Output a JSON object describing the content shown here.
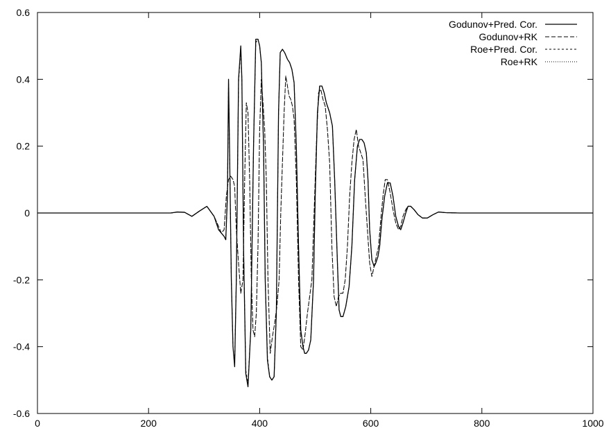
{
  "chart_data": {
    "type": "line",
    "title": "",
    "xlabel": "",
    "ylabel": "",
    "xlim": [
      0,
      1000
    ],
    "ylim": [
      -0.6,
      0.6
    ],
    "xticks": [
      0,
      200,
      400,
      600,
      800,
      1000
    ],
    "xtick_labels": [
      "0",
      "200",
      "400",
      "600",
      "800",
      "1000"
    ],
    "yticks": [
      -0.6,
      -0.4,
      -0.2,
      0,
      0.2,
      0.4,
      0.6
    ],
    "ytick_labels": [
      "-0.6",
      "-0.4",
      "-0.2",
      "0",
      "0.2",
      "0.4",
      "0.6"
    ],
    "grid": false,
    "legend_position": "top-right",
    "series": [
      {
        "name": "Godunov+Pred. Cor.",
        "line_style": "solid",
        "color": "#000000",
        "x": [
          0,
          240,
          252,
          265,
          278,
          291,
          305,
          318,
          326,
          331,
          336,
          339,
          342,
          344,
          346,
          349,
          352,
          355,
          358,
          362,
          366,
          368,
          371,
          375,
          379,
          384,
          389,
          393,
          397,
          400,
          403,
          407,
          410,
          414,
          418,
          422,
          426,
          430,
          434,
          437,
          441,
          445,
          450,
          454,
          458,
          462,
          466,
          470,
          474,
          478,
          481,
          484,
          488,
          492,
          497,
          500,
          504,
          508,
          512,
          516,
          520,
          526,
          531,
          535,
          540,
          543,
          546,
          550,
          555,
          561,
          566,
          571,
          576,
          580,
          584,
          588,
          592,
          595,
          598,
          602,
          606,
          609,
          613,
          616,
          620,
          625,
          630,
          635,
          640,
          645,
          650,
          654,
          658,
          663,
          667,
          672,
          678,
          685,
          693,
          702,
          712,
          722,
          735,
          760,
          800,
          900,
          1000
        ],
        "values": [
          0,
          0,
          0.003,
          0.002,
          -0.01,
          0.005,
          0.02,
          -0.01,
          -0.05,
          -0.06,
          -0.07,
          -0.08,
          0.05,
          0.4,
          0.17,
          -0.2,
          -0.4,
          -0.46,
          -0.2,
          0.4,
          0.5,
          0.4,
          -0.1,
          -0.48,
          -0.52,
          -0.35,
          0.2,
          0.52,
          0.52,
          0.5,
          0.45,
          0.2,
          -0.2,
          -0.44,
          -0.49,
          -0.5,
          -0.49,
          -0.3,
          0.3,
          0.48,
          0.49,
          0.48,
          0.46,
          0.45,
          0.43,
          0.39,
          0.2,
          -0.1,
          -0.35,
          -0.4,
          -0.42,
          -0.42,
          -0.41,
          -0.38,
          -0.2,
          0.05,
          0.3,
          0.38,
          0.38,
          0.36,
          0.33,
          0.3,
          0.26,
          0.1,
          -0.15,
          -0.29,
          -0.31,
          -0.31,
          -0.28,
          -0.22,
          -0.1,
          0.1,
          0.2,
          0.22,
          0.22,
          0.21,
          0.18,
          0.1,
          -0.05,
          -0.14,
          -0.16,
          -0.15,
          -0.13,
          -0.1,
          -0.02,
          0.05,
          0.09,
          0.09,
          0.05,
          -0.01,
          -0.04,
          -0.05,
          -0.03,
          0,
          0.02,
          0.02,
          0.01,
          -0.005,
          -0.015,
          -0.015,
          -0.005,
          0.003,
          0.001,
          0,
          0,
          0,
          0
        ]
      },
      {
        "name": "Godunov+RK",
        "line_style": "dashed",
        "color": "#000000",
        "x": [
          0,
          240,
          252,
          265,
          278,
          291,
          305,
          318,
          326,
          331,
          336,
          340,
          344,
          348,
          352,
          355,
          358,
          362,
          366,
          370,
          373,
          376,
          379,
          382,
          385,
          388,
          391,
          394,
          397,
          400,
          403,
          406,
          409,
          412,
          415,
          419,
          423,
          427,
          431,
          435,
          438,
          441,
          444,
          447,
          450,
          453,
          456,
          459,
          462,
          466,
          470,
          474,
          478,
          482,
          486,
          490,
          494,
          498,
          502,
          506,
          510,
          514,
          518,
          522,
          526,
          530,
          534,
          538,
          542,
          546,
          550,
          554,
          558,
          562,
          566,
          570,
          574,
          578,
          582,
          586,
          590,
          594,
          598,
          602,
          606,
          610,
          614,
          618,
          622,
          626,
          630,
          635,
          640,
          645,
          650,
          654,
          658,
          663,
          667,
          672,
          678,
          685,
          693,
          702,
          712,
          722,
          735,
          760,
          800,
          900,
          1000
        ],
        "values": [
          0,
          0,
          0.003,
          0.002,
          -0.01,
          0.005,
          0.02,
          -0.01,
          -0.04,
          -0.06,
          -0.05,
          0.05,
          0.1,
          0.11,
          0.1,
          0.08,
          -0.05,
          -0.15,
          -0.24,
          -0.2,
          0.1,
          0.33,
          0.3,
          0.1,
          -0.2,
          -0.35,
          -0.37,
          -0.3,
          -0.1,
          0.25,
          0.4,
          0.33,
          0.25,
          0.1,
          -0.2,
          -0.42,
          -0.37,
          -0.33,
          -0.28,
          -0.2,
          0,
          0.15,
          0.3,
          0.41,
          0.38,
          0.35,
          0.34,
          0.32,
          0.28,
          0.1,
          -0.2,
          -0.4,
          -0.41,
          -0.36,
          -0.3,
          -0.25,
          -0.2,
          0,
          0.2,
          0.36,
          0.37,
          0.34,
          0.32,
          0.25,
          0.15,
          -0.1,
          -0.25,
          -0.28,
          -0.25,
          -0.24,
          -0.24,
          -0.2,
          -0.1,
          0.05,
          0.15,
          0.22,
          0.25,
          0.2,
          0.18,
          0.16,
          0.05,
          -0.05,
          -0.15,
          -0.19,
          -0.16,
          -0.13,
          -0.1,
          -0.02,
          0.05,
          0.1,
          0.1,
          0.06,
          0.01,
          -0.03,
          -0.05,
          -0.04,
          -0.01,
          0.01,
          0.02,
          0.02,
          0.01,
          -0.005,
          -0.015,
          -0.015,
          -0.005,
          0.003,
          0.001,
          0,
          0,
          0,
          0
        ]
      },
      {
        "name": "Roe+Pred. Cor.",
        "line_style": "short-dashed",
        "color": "#000000",
        "x": [
          0,
          240,
          252,
          265,
          278,
          291,
          305,
          318,
          326,
          331,
          336,
          339,
          342,
          344,
          346,
          349,
          352,
          355,
          358,
          362,
          366,
          368,
          371,
          375,
          379,
          384,
          389,
          393,
          397,
          400,
          403,
          407,
          410,
          414,
          418,
          422,
          426,
          430,
          434,
          437,
          441,
          445,
          450,
          454,
          458,
          462,
          466,
          470,
          474,
          478,
          481,
          484,
          488,
          492,
          497,
          500,
          504,
          508,
          512,
          516,
          520,
          526,
          531,
          535,
          540,
          543,
          546,
          550,
          555,
          561,
          566,
          571,
          576,
          580,
          584,
          588,
          592,
          595,
          598,
          602,
          606,
          609,
          613,
          616,
          620,
          625,
          630,
          635,
          640,
          645,
          650,
          654,
          658,
          663,
          667,
          672,
          678,
          685,
          693,
          702,
          712,
          722,
          735,
          760,
          800,
          900,
          1000
        ],
        "values": [
          0,
          0,
          0.003,
          0.002,
          -0.01,
          0.005,
          0.02,
          -0.01,
          -0.05,
          -0.06,
          -0.07,
          -0.08,
          0.05,
          0.39,
          0.17,
          -0.2,
          -0.4,
          -0.45,
          -0.2,
          0.39,
          0.49,
          0.4,
          -0.1,
          -0.47,
          -0.51,
          -0.35,
          0.2,
          0.51,
          0.52,
          0.5,
          0.45,
          0.2,
          -0.2,
          -0.43,
          -0.49,
          -0.5,
          -0.49,
          -0.3,
          0.3,
          0.48,
          0.49,
          0.48,
          0.46,
          0.45,
          0.43,
          0.39,
          0.2,
          -0.1,
          -0.35,
          -0.4,
          -0.42,
          -0.42,
          -0.41,
          -0.38,
          -0.2,
          0.05,
          0.3,
          0.38,
          0.38,
          0.36,
          0.33,
          0.3,
          0.26,
          0.1,
          -0.15,
          -0.29,
          -0.31,
          -0.31,
          -0.28,
          -0.22,
          -0.1,
          0.1,
          0.2,
          0.22,
          0.22,
          0.21,
          0.18,
          0.1,
          -0.05,
          -0.14,
          -0.16,
          -0.15,
          -0.13,
          -0.1,
          -0.02,
          0.05,
          0.09,
          0.09,
          0.05,
          -0.01,
          -0.04,
          -0.05,
          -0.03,
          0,
          0.02,
          0.02,
          0.01,
          -0.005,
          -0.015,
          -0.015,
          -0.005,
          0.003,
          0.001,
          0,
          0,
          0,
          0
        ]
      },
      {
        "name": "Roe+RK",
        "line_style": "dotted",
        "color": "#000000",
        "x": [
          0,
          240,
          252,
          265,
          278,
          291,
          305,
          318,
          326,
          331,
          336,
          340,
          344,
          348,
          352,
          355,
          358,
          362,
          366,
          370,
          373,
          376,
          379,
          382,
          385,
          388,
          391,
          394,
          397,
          400,
          403,
          406,
          409,
          412,
          415,
          419,
          423,
          427,
          431,
          435,
          438,
          441,
          444,
          447,
          450,
          453,
          456,
          459,
          462,
          466,
          470,
          474,
          478,
          482,
          486,
          490,
          494,
          498,
          502,
          506,
          510,
          514,
          518,
          522,
          526,
          530,
          534,
          538,
          542,
          546,
          550,
          554,
          558,
          562,
          566,
          570,
          574,
          578,
          582,
          586,
          590,
          594,
          598,
          602,
          606,
          610,
          614,
          618,
          622,
          626,
          630,
          635,
          640,
          645,
          650,
          654,
          658,
          663,
          667,
          672,
          678,
          685,
          693,
          702,
          712,
          722,
          735,
          760,
          800,
          900,
          1000
        ],
        "values": [
          0,
          0,
          0.003,
          0.002,
          -0.01,
          0.005,
          0.02,
          -0.01,
          -0.04,
          -0.06,
          -0.05,
          0.05,
          0.1,
          0.11,
          0.1,
          0.08,
          -0.05,
          -0.15,
          -0.24,
          -0.2,
          0.1,
          0.33,
          0.3,
          0.1,
          -0.2,
          -0.35,
          -0.37,
          -0.3,
          -0.1,
          0.25,
          0.4,
          0.33,
          0.25,
          0.1,
          -0.2,
          -0.42,
          -0.37,
          -0.33,
          -0.28,
          -0.2,
          0,
          0.15,
          0.3,
          0.41,
          0.38,
          0.35,
          0.34,
          0.32,
          0.28,
          0.1,
          -0.2,
          -0.4,
          -0.41,
          -0.36,
          -0.3,
          -0.25,
          -0.2,
          0,
          0.2,
          0.36,
          0.37,
          0.34,
          0.32,
          0.25,
          0.15,
          -0.1,
          -0.25,
          -0.28,
          -0.25,
          -0.24,
          -0.24,
          -0.2,
          -0.1,
          0.05,
          0.15,
          0.22,
          0.25,
          0.2,
          0.18,
          0.16,
          0.05,
          -0.05,
          -0.15,
          -0.19,
          -0.16,
          -0.13,
          -0.1,
          -0.02,
          0.05,
          0.1,
          0.1,
          0.06,
          0.01,
          -0.03,
          -0.05,
          -0.04,
          -0.01,
          0.01,
          0.02,
          0.02,
          0.01,
          -0.005,
          -0.015,
          -0.015,
          -0.005,
          0.003,
          0.001,
          0,
          0,
          0,
          0
        ]
      }
    ]
  }
}
